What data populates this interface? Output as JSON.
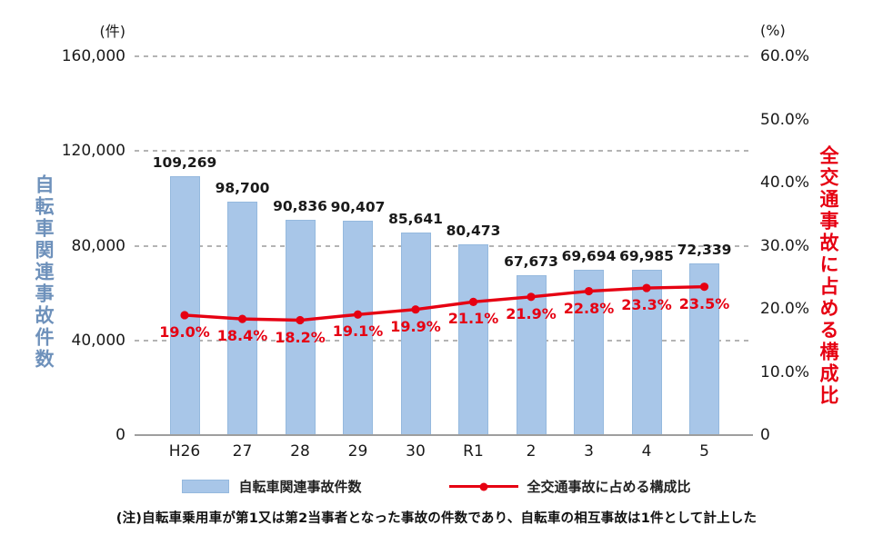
{
  "chart_data": {
    "type": "bar",
    "subtype": "bar-line-combo",
    "categories": [
      "H26",
      "27",
      "28",
      "29",
      "30",
      "R1",
      "2",
      "3",
      "4",
      "5"
    ],
    "series": [
      {
        "name": "自転車関連事故件数",
        "type": "bar",
        "axis": "left",
        "values": [
          109269,
          98700,
          90836,
          90407,
          85641,
          80473,
          67673,
          69694,
          69985,
          72339
        ],
        "labels": [
          "109,269",
          "98,700",
          "90,836",
          "90,407",
          "85,641",
          "80,473",
          "67,673",
          "69,694",
          "69,985",
          "72,339"
        ]
      },
      {
        "name": "全交通事故に占める構成比",
        "type": "line",
        "axis": "right",
        "values": [
          19.0,
          18.4,
          18.2,
          19.1,
          19.9,
          21.1,
          21.9,
          22.8,
          23.3,
          23.5
        ],
        "labels": [
          "19.0%",
          "18.4%",
          "18.2%",
          "19.1%",
          "19.9%",
          "21.1%",
          "21.9%",
          "22.8%",
          "23.3%",
          "23.5%"
        ]
      }
    ],
    "left_axis": {
      "unit": "(件)",
      "title": "自転車関連事故件数",
      "min": 0,
      "max": 160000,
      "ticks": [
        {
          "v": 160000,
          "label": "160,000"
        },
        {
          "v": 120000,
          "label": "120,000"
        },
        {
          "v": 80000,
          "label": "80,000"
        },
        {
          "v": 40000,
          "label": "40,000"
        },
        {
          "v": 0,
          "label": "0"
        }
      ]
    },
    "right_axis": {
      "unit": "(%)",
      "title": "全交通事故に占める構成比",
      "min": 0,
      "max": 60,
      "ticks": [
        {
          "v": 60,
          "label": "60.0%"
        },
        {
          "v": 50,
          "label": "50.0%"
        },
        {
          "v": 40,
          "label": "40.0%"
        },
        {
          "v": 30,
          "label": "30.0%"
        },
        {
          "v": 20,
          "label": "20.0%"
        },
        {
          "v": 10,
          "label": "10.0%"
        },
        {
          "v": 0,
          "label": "0"
        }
      ]
    },
    "grid": "horizontal dashed lines at left-axis ticks",
    "legend_position": "bottom",
    "colors": {
      "bar_fill": "#a8c6e8",
      "bar_border": "#95b9de",
      "line": "#e60012",
      "percent_label": "#e60012",
      "value_label": "#1a1a1a",
      "left_title": "#6e91bb",
      "right_title": "#e60012",
      "grid": "#b4b4b4",
      "axis_line": "#9e9e9e"
    }
  },
  "legend": {
    "items": [
      {
        "label": "自転車関連事故件数",
        "marker": "bar-swatch"
      },
      {
        "label": "全交通事故に占める構成比",
        "marker": "line-dot"
      }
    ]
  },
  "note": "(注)自転車乗用車が第1又は第2当事者となった事故の件数であり、自転車の相互事故は1件として計上した"
}
